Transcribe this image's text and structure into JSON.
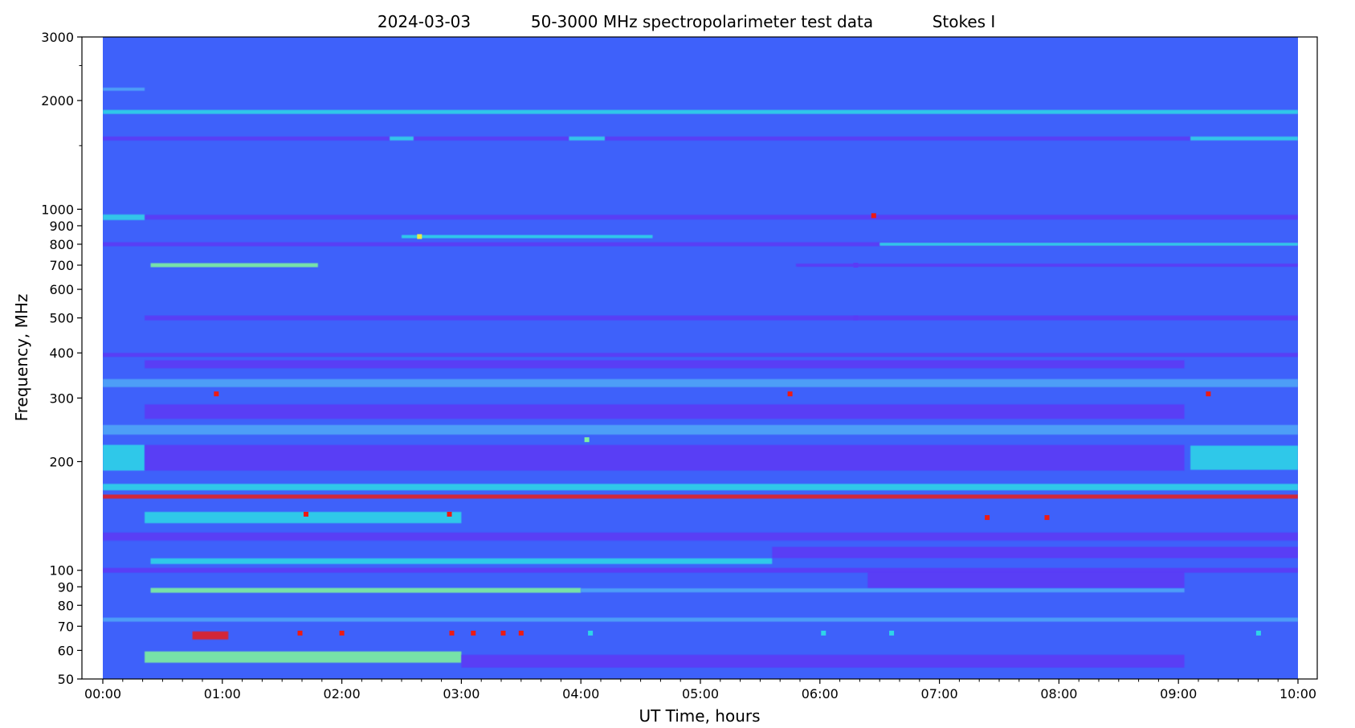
{
  "chart_data": {
    "type": "heatmap",
    "title_parts": [
      "2024-03-03",
      "50-3000 MHz spectropolarimeter test data",
      "Stokes I"
    ],
    "xlabel": "UT Time, hours",
    "ylabel": "Frequency, MHz",
    "x_scale": "linear",
    "x_range_hours": [
      0,
      10
    ],
    "x_ticks": [
      {
        "value": 0,
        "label": "00:00"
      },
      {
        "value": 1,
        "label": "01:00"
      },
      {
        "value": 2,
        "label": "02:00"
      },
      {
        "value": 3,
        "label": "03:00"
      },
      {
        "value": 4,
        "label": "04:00"
      },
      {
        "value": 5,
        "label": "05:00"
      },
      {
        "value": 6,
        "label": "06:00"
      },
      {
        "value": 7,
        "label": "07:00"
      },
      {
        "value": 8,
        "label": "08:00"
      },
      {
        "value": 9,
        "label": "09:00"
      },
      {
        "value": 10,
        "label": "10:00"
      }
    ],
    "y_scale": "log",
    "y_range_mhz": [
      50,
      3000
    ],
    "y_ticks": [
      {
        "value": 50,
        "label": "50"
      },
      {
        "value": 60,
        "label": "60"
      },
      {
        "value": 70,
        "label": "70"
      },
      {
        "value": 80,
        "label": "80"
      },
      {
        "value": 90,
        "label": "90"
      },
      {
        "value": 100,
        "label": "100"
      },
      {
        "value": 200,
        "label": "200"
      },
      {
        "value": 300,
        "label": "300"
      },
      {
        "value": 400,
        "label": "400"
      },
      {
        "value": 500,
        "label": "500"
      },
      {
        "value": 600,
        "label": "600"
      },
      {
        "value": 700,
        "label": "700"
      },
      {
        "value": 800,
        "label": "800"
      },
      {
        "value": 900,
        "label": "900"
      },
      {
        "value": 1000,
        "label": "1000"
      },
      {
        "value": 2000,
        "label": "2000"
      },
      {
        "value": 3000,
        "label": "3000"
      }
    ],
    "y_minor_ticks": [
      1500,
      2500
    ],
    "colormap": "rainbow",
    "colors": {
      "background": "#3e61fa",
      "dark": "#5b3bf5",
      "cyan": "#2fd4e8",
      "light": "#4fa5f7",
      "green": "#7ef0a0",
      "yellow": "#e9e84a",
      "red": "#ee1a12"
    },
    "data_time_range_hours": [
      0,
      10
    ],
    "bands": [
      {
        "f_mhz": 2150,
        "t_hours": [
          0,
          0.35
        ],
        "color": "light",
        "width": 2
      },
      {
        "f_mhz": 1860,
        "t_hours": [
          0,
          10
        ],
        "color": "cyan",
        "width": 3
      },
      {
        "f_mhz": 1570,
        "t_hours": [
          0,
          10
        ],
        "color": "dark",
        "width": 3
      },
      {
        "f_mhz": 1570,
        "t_hours": [
          2.4,
          2.6
        ],
        "color": "cyan",
        "width": 3
      },
      {
        "f_mhz": 1570,
        "t_hours": [
          3.9,
          4.2
        ],
        "color": "cyan",
        "width": 3
      },
      {
        "f_mhz": 1570,
        "t_hours": [
          9.1,
          10
        ],
        "color": "cyan",
        "width": 3
      },
      {
        "f_mhz": 950,
        "t_hours": [
          0,
          10
        ],
        "color": "dark",
        "width": 4
      },
      {
        "f_mhz": 950,
        "t_hours": [
          0,
          0.35
        ],
        "color": "cyan",
        "width": 5
      },
      {
        "f_mhz": 800,
        "t_hours": [
          0,
          10
        ],
        "color": "dark",
        "width": 3
      },
      {
        "f_mhz": 800,
        "t_hours": [
          6.5,
          10
        ],
        "color": "cyan",
        "width": 2
      },
      {
        "f_mhz": 840,
        "t_hours": [
          2.5,
          4.6
        ],
        "color": "cyan",
        "width": 2
      },
      {
        "f_mhz": 700,
        "t_hours": [
          0.4,
          1.8
        ],
        "color": "green",
        "width": 3
      },
      {
        "f_mhz": 700,
        "t_hours": [
          5.8,
          10
        ],
        "color": "dark",
        "width": 2
      },
      {
        "f_mhz": 500,
        "t_hours": [
          0.35,
          10
        ],
        "color": "dark",
        "width": 4
      },
      {
        "f_mhz": 395,
        "t_hours": [
          0,
          10
        ],
        "color": "dark",
        "width": 3
      },
      {
        "f_mhz": 372,
        "t_hours": [
          0.35,
          9.05
        ],
        "color": "dark",
        "width": 8
      },
      {
        "f_mhz": 330,
        "t_hours": [
          0,
          10
        ],
        "color": "light",
        "width": 8
      },
      {
        "f_mhz": 275,
        "t_hours": [
          0.35,
          9.05
        ],
        "color": "dark",
        "width": 16
      },
      {
        "f_mhz": 245,
        "t_hours": [
          0,
          10
        ],
        "color": "light",
        "width": 10
      },
      {
        "f_mhz": 205,
        "t_hours": [
          0,
          0.35
        ],
        "color": "cyan",
        "width": 30
      },
      {
        "f_mhz": 205,
        "t_hours": [
          9.1,
          10
        ],
        "color": "cyan",
        "width": 28
      },
      {
        "f_mhz": 205,
        "t_hours": [
          0.35,
          9.05
        ],
        "color": "dark",
        "width": 30
      },
      {
        "f_mhz": 160,
        "t_hours": [
          0,
          10
        ],
        "color": "red",
        "width": 3
      },
      {
        "f_mhz": 170,
        "t_hours": [
          0,
          10
        ],
        "color": "cyan",
        "width": 6
      },
      {
        "f_mhz": 140,
        "t_hours": [
          0.35,
          3.0
        ],
        "color": "cyan",
        "width": 12
      },
      {
        "f_mhz": 124,
        "t_hours": [
          0,
          10
        ],
        "color": "dark",
        "width": 8
      },
      {
        "f_mhz": 112,
        "t_hours": [
          5.6,
          10
        ],
        "color": "dark",
        "width": 12
      },
      {
        "f_mhz": 106,
        "t_hours": [
          0.4,
          5.6
        ],
        "color": "cyan",
        "width": 5
      },
      {
        "f_mhz": 100,
        "t_hours": [
          0,
          10
        ],
        "color": "dark",
        "width": 4
      },
      {
        "f_mhz": 94,
        "t_hours": [
          6.4,
          9.05
        ],
        "color": "dark",
        "width": 18
      },
      {
        "f_mhz": 88,
        "t_hours": [
          0.4,
          4.0
        ],
        "color": "green",
        "width": 4
      },
      {
        "f_mhz": 88,
        "t_hours": [
          4.0,
          9.05
        ],
        "color": "light",
        "width": 3
      },
      {
        "f_mhz": 73,
        "t_hours": [
          0,
          10
        ],
        "color": "light",
        "width": 3
      },
      {
        "f_mhz": 66,
        "t_hours": [
          0.75,
          1.05
        ],
        "color": "red",
        "width": 8
      },
      {
        "f_mhz": 57.5,
        "t_hours": [
          0.35,
          3.0
        ],
        "color": "green",
        "width": 12
      },
      {
        "f_mhz": 56,
        "t_hours": [
          3.0,
          9.05
        ],
        "color": "dark",
        "width": 14
      }
    ],
    "spots": [
      {
        "t_hours": 0.95,
        "f_mhz": 308,
        "color": "red"
      },
      {
        "t_hours": 5.75,
        "f_mhz": 308,
        "color": "red"
      },
      {
        "t_hours": 9.25,
        "f_mhz": 308,
        "color": "red"
      },
      {
        "t_hours": 6.45,
        "f_mhz": 960,
        "color": "red"
      },
      {
        "t_hours": 6.3,
        "f_mhz": 500,
        "color": "dark"
      },
      {
        "t_hours": 6.3,
        "f_mhz": 700,
        "color": "dark"
      },
      {
        "t_hours": 2.65,
        "f_mhz": 840,
        "color": "yellow"
      },
      {
        "t_hours": 4.05,
        "f_mhz": 230,
        "color": "green"
      },
      {
        "t_hours": 1.65,
        "f_mhz": 67,
        "color": "red"
      },
      {
        "t_hours": 2.0,
        "f_mhz": 67,
        "color": "red"
      },
      {
        "t_hours": 2.92,
        "f_mhz": 67,
        "color": "red"
      },
      {
        "t_hours": 3.1,
        "f_mhz": 67,
        "color": "red"
      },
      {
        "t_hours": 3.35,
        "f_mhz": 67,
        "color": "red"
      },
      {
        "t_hours": 3.5,
        "f_mhz": 67,
        "color": "red"
      },
      {
        "t_hours": 4.08,
        "f_mhz": 67,
        "color": "cyan"
      },
      {
        "t_hours": 6.03,
        "f_mhz": 67,
        "color": "cyan"
      },
      {
        "t_hours": 6.6,
        "f_mhz": 67,
        "color": "cyan"
      },
      {
        "t_hours": 7.9,
        "f_mhz": 140,
        "color": "red"
      },
      {
        "t_hours": 7.4,
        "f_mhz": 140,
        "color": "red"
      },
      {
        "t_hours": 1.7,
        "f_mhz": 143,
        "color": "red"
      },
      {
        "t_hours": 2.9,
        "f_mhz": 143,
        "color": "red"
      },
      {
        "t_hours": 9.67,
        "f_mhz": 67,
        "color": "cyan"
      }
    ]
  }
}
